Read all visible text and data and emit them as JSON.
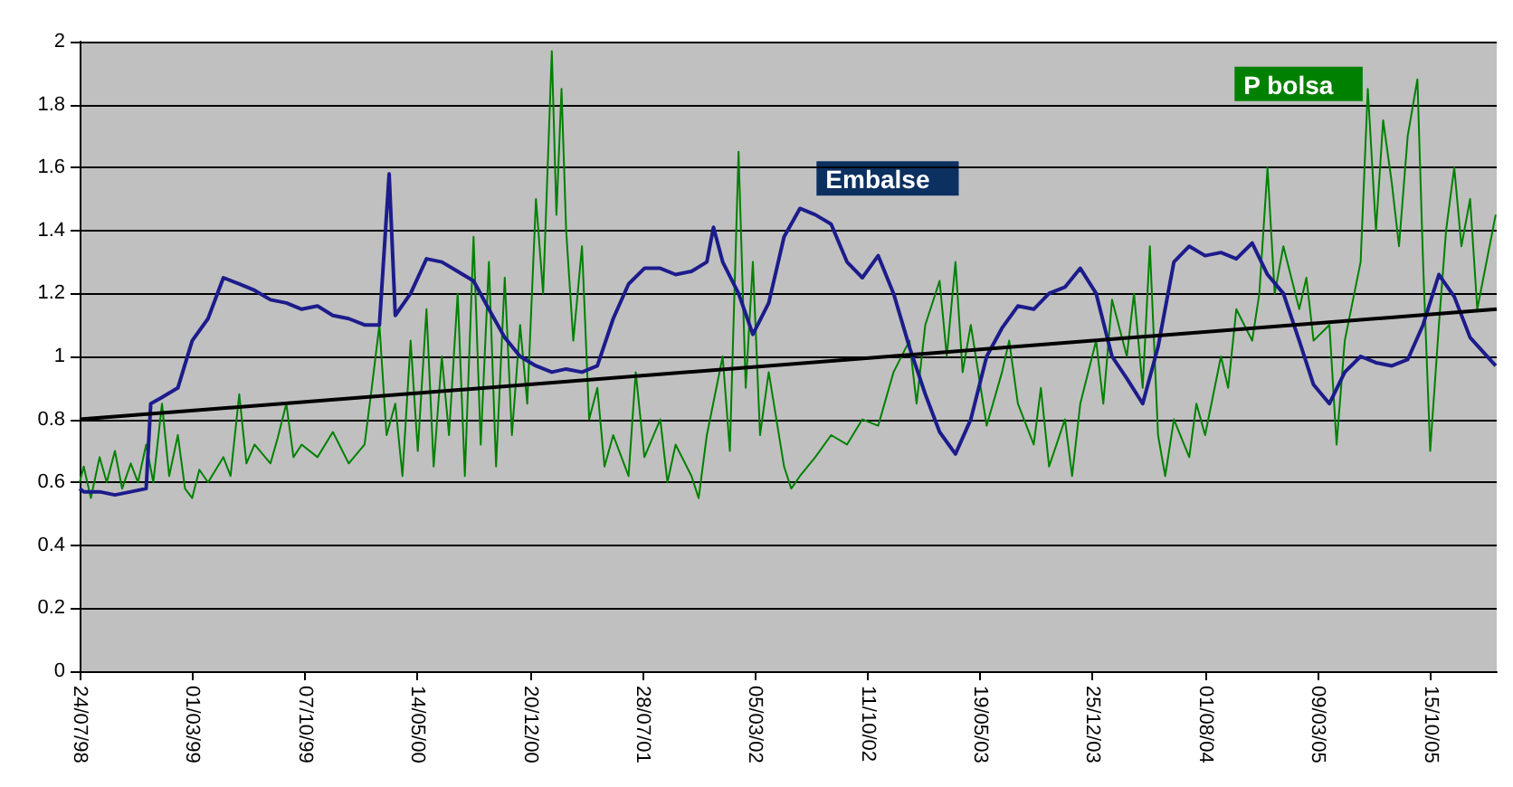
{
  "chart_data": {
    "type": "line",
    "xlim": [
      "1998-07-24",
      "2006-02-22"
    ],
    "xticks": [
      {
        "value": "1998-07-24",
        "label": "24/07/98"
      },
      {
        "value": "1999-03-01",
        "label": "01/03/99"
      },
      {
        "value": "1999-10-07",
        "label": "07/10/99"
      },
      {
        "value": "2000-05-14",
        "label": "14/05/00"
      },
      {
        "value": "2000-12-20",
        "label": "20/12/00"
      },
      {
        "value": "2001-07-28",
        "label": "28/07/01"
      },
      {
        "value": "2002-03-05",
        "label": "05/03/02"
      },
      {
        "value": "2002-10-11",
        "label": "11/10/02"
      },
      {
        "value": "2003-05-19",
        "label": "19/05/03"
      },
      {
        "value": "2003-12-25",
        "label": "25/12/03"
      },
      {
        "value": "2004-08-01",
        "label": "01/08/04"
      },
      {
        "value": "2005-03-09",
        "label": "09/03/05"
      },
      {
        "value": "2005-10-15",
        "label": "15/10/05"
      }
    ],
    "ylim": [
      0,
      2
    ],
    "yticks": [
      0,
      0.2,
      0.4,
      0.6,
      0.8,
      1,
      1.2,
      1.4,
      1.6,
      1.8,
      2
    ],
    "grid": "y",
    "legend": false,
    "marker": "none",
    "line_style": "solid",
    "series": [
      {
        "name": "P bolsa",
        "color": "#008000",
        "x": [
          "1998-07-24",
          "1998-08",
          "1998-08-15",
          "1998-09",
          "1998-09-15",
          "1998-10",
          "1998-10-15",
          "1998-11",
          "1998-11-15",
          "1998-12",
          "1998-12-15",
          "1999-01",
          "1999-01-15",
          "1999-02",
          "1999-02-15",
          "1999-03",
          "1999-03-15",
          "1999-04",
          "1999-05",
          "1999-05-15",
          "1999-06",
          "1999-06-15",
          "1999-07",
          "1999-08",
          "1999-08-15",
          "1999-09",
          "1999-09-15",
          "1999-10",
          "1999-11",
          "1999-12",
          "2000-01",
          "2000-02",
          "2000-02-15",
          "2000-03",
          "2000-03-15",
          "2000-04",
          "2000-04-15",
          "2000-05",
          "2000-05-15",
          "2000-06",
          "2000-06-15",
          "2000-07",
          "2000-07-15",
          "2000-08",
          "2000-08-15",
          "2000-09",
          "2000-09-15",
          "2000-10",
          "2000-10-15",
          "2000-11",
          "2000-11-15",
          "2000-12",
          "2000-12-15",
          "2001-01",
          "2001-01-15",
          "2001-02",
          "2001-02-10",
          "2001-02-20",
          "2001-03",
          "2001-03-15",
          "2001-04",
          "2001-04-15",
          "2001-05",
          "2001-05-15",
          "2001-06",
          "2001-07",
          "2001-07-15",
          "2001-08",
          "2001-09",
          "2001-09-15",
          "2001-10",
          "2001-11",
          "2001-11-15",
          "2001-12",
          "2002-01",
          "2002-01-15",
          "2002-02",
          "2002-02-15",
          "2002-03",
          "2002-03-15",
          "2002-04",
          "2002-05",
          "2002-05-15",
          "2002-06",
          "2002-07",
          "2002-08",
          "2002-09",
          "2002-10",
          "2002-11",
          "2002-12",
          "2003-01",
          "2003-01-15",
          "2003-02",
          "2003-03",
          "2003-03-15",
          "2003-04",
          "2003-04-15",
          "2003-05",
          "2003-06",
          "2003-07",
          "2003-07-15",
          "2003-08",
          "2003-09",
          "2003-09-15",
          "2003-10",
          "2003-11",
          "2003-11-15",
          "2003-12",
          "2004-01",
          "2004-01-15",
          "2004-02",
          "2004-03",
          "2004-03-15",
          "2004-04",
          "2004-04-15",
          "2004-05",
          "2004-05-15",
          "2004-06",
          "2004-07",
          "2004-07-15",
          "2004-08",
          "2004-09",
          "2004-09-15",
          "2004-10",
          "2004-11",
          "2004-11-15",
          "2004-12",
          "2004-12-15",
          "2005-01",
          "2005-02",
          "2005-02-15",
          "2005-03",
          "2005-04",
          "2005-04-15",
          "2005-05",
          "2005-06",
          "2005-06-15",
          "2005-07",
          "2005-07-15",
          "2005-08",
          "2005-08-15",
          "2005-09",
          "2005-09-20",
          "2005-10",
          "2005-10-15",
          "2005-11",
          "2005-11-15",
          "2005-12",
          "2005-12-15",
          "2006-01",
          "2006-01-15",
          "2006-02-20"
        ],
        "values": [
          0.6,
          0.65,
          0.55,
          0.68,
          0.6,
          0.7,
          0.58,
          0.66,
          0.6,
          0.72,
          0.6,
          0.85,
          0.62,
          0.75,
          0.58,
          0.55,
          0.64,
          0.6,
          0.68,
          0.62,
          0.88,
          0.66,
          0.72,
          0.66,
          0.74,
          0.85,
          0.68,
          0.72,
          0.68,
          0.76,
          0.66,
          0.72,
          0.9,
          1.1,
          0.75,
          0.85,
          0.62,
          1.05,
          0.7,
          1.15,
          0.65,
          1.0,
          0.75,
          1.2,
          0.62,
          1.38,
          0.72,
          1.3,
          0.65,
          1.25,
          0.75,
          1.1,
          0.85,
          1.5,
          1.2,
          1.97,
          1.45,
          1.85,
          1.4,
          1.05,
          1.35,
          0.8,
          0.9,
          0.65,
          0.75,
          0.62,
          0.95,
          0.68,
          0.8,
          0.6,
          0.72,
          0.62,
          0.55,
          0.75,
          1.0,
          0.7,
          1.65,
          0.9,
          1.3,
          0.75,
          0.95,
          0.65,
          0.58,
          0.62,
          0.68,
          0.75,
          0.72,
          0.8,
          0.78,
          0.95,
          1.05,
          0.85,
          1.1,
          1.24,
          1.0,
          1.3,
          0.95,
          1.1,
          0.78,
          0.95,
          1.05,
          0.85,
          0.72,
          0.9,
          0.65,
          0.8,
          0.62,
          0.85,
          1.05,
          0.85,
          1.18,
          1.0,
          1.2,
          0.9,
          1.35,
          0.75,
          0.62,
          0.8,
          0.68,
          0.85,
          0.75,
          1.0,
          0.9,
          1.15,
          1.05,
          1.2,
          1.6,
          1.2,
          1.35,
          1.15,
          1.25,
          1.05,
          1.1,
          0.72,
          1.05,
          1.3,
          1.85,
          1.4,
          1.75,
          1.55,
          1.35,
          1.7,
          1.88,
          1.3,
          0.7,
          1.1,
          1.4,
          1.6,
          1.35,
          1.5,
          1.15,
          1.45
        ]
      },
      {
        "name": "Embalse",
        "color": "#1c1c8c",
        "x": [
          "1998-07-24",
          "1998-08",
          "1998-09",
          "1998-10",
          "1998-11",
          "1998-12",
          "1998-12-10",
          "1999-01",
          "1999-02",
          "1999-03",
          "1999-04",
          "1999-05",
          "1999-06",
          "1999-07",
          "1999-08",
          "1999-09",
          "1999-10",
          "1999-11",
          "1999-12",
          "2000-01",
          "2000-02",
          "2000-03",
          "2000-03-20",
          "2000-04",
          "2000-05",
          "2000-06",
          "2000-07",
          "2000-08",
          "2000-09",
          "2000-10",
          "2000-11",
          "2000-12",
          "2001-01",
          "2001-02",
          "2001-03",
          "2001-04",
          "2001-05",
          "2001-06",
          "2001-07",
          "2001-08",
          "2001-09",
          "2001-10",
          "2001-11",
          "2001-12",
          "2001-12-14",
          "2002-01",
          "2002-02",
          "2002-03",
          "2002-04",
          "2002-05",
          "2002-06",
          "2002-07",
          "2002-08",
          "2002-09",
          "2002-10",
          "2002-11",
          "2002-12",
          "2003-01",
          "2003-02",
          "2003-03",
          "2003-04",
          "2003-05",
          "2003-06",
          "2003-07",
          "2003-08",
          "2003-09",
          "2003-10",
          "2003-11",
          "2003-12",
          "2004-01",
          "2004-02",
          "2004-03",
          "2004-04",
          "2004-05",
          "2004-06",
          "2004-07",
          "2004-08",
          "2004-09",
          "2004-10",
          "2004-11",
          "2004-12",
          "2005-01",
          "2005-02",
          "2005-03",
          "2005-04",
          "2005-05",
          "2005-06",
          "2005-07",
          "2005-08",
          "2005-09",
          "2005-10",
          "2005-11",
          "2005-12",
          "2006-01",
          "2006-02-20"
        ],
        "values": [
          0.58,
          0.57,
          0.57,
          0.56,
          0.57,
          0.58,
          0.85,
          0.87,
          0.9,
          1.05,
          1.12,
          1.25,
          1.23,
          1.21,
          1.18,
          1.17,
          1.15,
          1.16,
          1.13,
          1.12,
          1.1,
          1.1,
          1.58,
          1.13,
          1.2,
          1.31,
          1.3,
          1.27,
          1.24,
          1.15,
          1.06,
          1.0,
          0.97,
          0.95,
          0.96,
          0.95,
          0.97,
          1.12,
          1.23,
          1.28,
          1.28,
          1.26,
          1.27,
          1.3,
          1.41,
          1.3,
          1.2,
          1.07,
          1.17,
          1.38,
          1.47,
          1.45,
          1.42,
          1.3,
          1.25,
          1.32,
          1.2,
          1.03,
          0.88,
          0.76,
          0.69,
          0.8,
          1.0,
          1.09,
          1.16,
          1.15,
          1.2,
          1.22,
          1.28,
          1.2,
          1.0,
          0.93,
          0.85,
          1.03,
          1.3,
          1.35,
          1.32,
          1.33,
          1.31,
          1.36,
          1.26,
          1.2,
          1.05,
          0.91,
          0.85,
          0.95,
          1.0,
          0.98,
          0.97,
          0.99,
          1.1,
          1.26,
          1.19,
          1.06,
          0.97
        ]
      },
      {
        "color": "#000000",
        "x": [
          "1998-07-24",
          "2006-02-22"
        ],
        "values": [
          0.8,
          1.15
        ]
      }
    ]
  }
}
